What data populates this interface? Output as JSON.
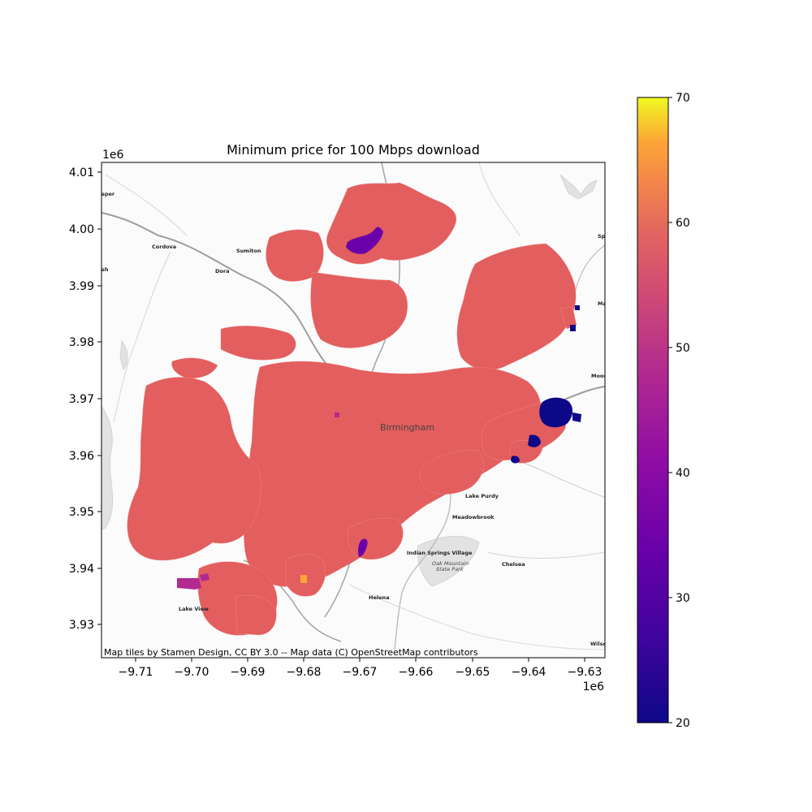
{
  "title": "Minimum price for 100 Mbps download",
  "x_axis": {
    "ticks": [
      "−9.71",
      "−9.70",
      "−9.69",
      "−9.68",
      "−9.67",
      "−9.66",
      "−9.65",
      "−9.64",
      "−9.63"
    ],
    "offset_label": "1e6"
  },
  "y_axis": {
    "ticks": [
      "3.93",
      "3.94",
      "3.95",
      "3.96",
      "3.97",
      "3.98",
      "3.99",
      "4.00",
      "4.01"
    ],
    "offset_label": "1e6"
  },
  "colorbar": {
    "ticks": [
      "20",
      "30",
      "40",
      "50",
      "60",
      "70"
    ],
    "range": [
      20,
      70
    ],
    "colormap": "plasma"
  },
  "attribution": "Map tiles by Stamen Design, CC BY 3.0 -- Map data (C) OpenStreetMap contributors",
  "places": {
    "cordova": "Cordova",
    "sumiton": "Sumiton",
    "dora": "Dora",
    "birmingham": "Birmingham",
    "lake_purdy": "Lake Purdy",
    "meadowbrook": "Meadowbrook",
    "indian_springs": "Indian Springs Village",
    "oak_mountain": "Oak Mountain",
    "state_park": "State Park",
    "chelsea": "Chelsea",
    "helena": "Helena",
    "lake_view": "Lake View",
    "wilson": "Wilso",
    "moody": "Mood",
    "spr": "Spr",
    "mar": "Ma",
    "jasper": "sper",
    "sh": "sh"
  },
  "colors": {
    "dominant_fill": "#e35e5e",
    "low_price": "#0d0887",
    "mid_low": "#6a00a8",
    "mid": "#b12a90",
    "high": "#fca636"
  }
}
